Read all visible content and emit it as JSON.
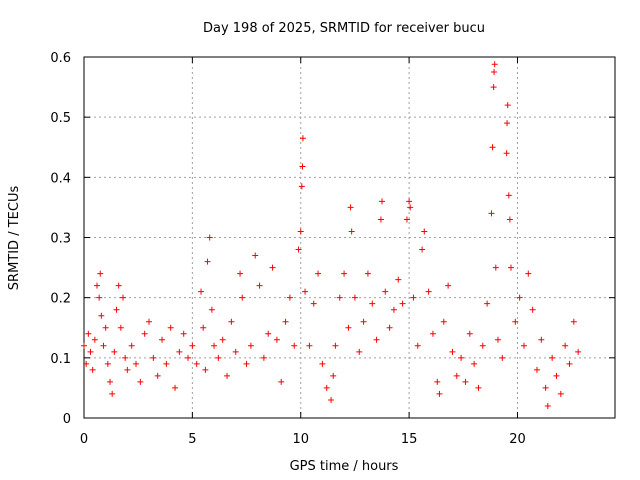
{
  "chart_data": {
    "type": "scatter",
    "title": "Day 198 of 2025, SRMTID for receiver bucu",
    "xlabel": "GPS time / hours",
    "ylabel": "SRMTID / TECUs",
    "xlim": [
      0,
      24.5
    ],
    "ylim": [
      0,
      0.6
    ],
    "xticks": [
      0,
      5,
      10,
      15,
      20
    ],
    "yticks": [
      0,
      0.1,
      0.2,
      0.3,
      0.4,
      0.5,
      0.6
    ],
    "xtick_labels": [
      "0",
      "5",
      "10",
      "15",
      "20"
    ],
    "ytick_labels": [
      "0",
      "0.1",
      "0.2",
      "0.3",
      "0.4",
      "0.5",
      "0.6"
    ],
    "grid": true,
    "marker": "+",
    "color": "#ff0000",
    "series": [
      {
        "name": "SRMTID",
        "points": [
          [
            0.0,
            0.12
          ],
          [
            0.1,
            0.09
          ],
          [
            0.2,
            0.14
          ],
          [
            0.3,
            0.11
          ],
          [
            0.4,
            0.08
          ],
          [
            0.5,
            0.13
          ],
          [
            0.6,
            0.22
          ],
          [
            0.7,
            0.2
          ],
          [
            0.75,
            0.24
          ],
          [
            0.8,
            0.17
          ],
          [
            0.9,
            0.12
          ],
          [
            1.0,
            0.15
          ],
          [
            1.1,
            0.09
          ],
          [
            1.2,
            0.06
          ],
          [
            1.3,
            0.04
          ],
          [
            1.4,
            0.11
          ],
          [
            1.5,
            0.18
          ],
          [
            1.6,
            0.22
          ],
          [
            1.7,
            0.15
          ],
          [
            1.8,
            0.2
          ],
          [
            1.9,
            0.1
          ],
          [
            2.0,
            0.08
          ],
          [
            2.2,
            0.12
          ],
          [
            2.4,
            0.09
          ],
          [
            2.6,
            0.06
          ],
          [
            2.8,
            0.14
          ],
          [
            3.0,
            0.16
          ],
          [
            3.2,
            0.1
          ],
          [
            3.4,
            0.07
          ],
          [
            3.6,
            0.13
          ],
          [
            3.8,
            0.09
          ],
          [
            4.0,
            0.15
          ],
          [
            4.2,
            0.05
          ],
          [
            4.4,
            0.11
          ],
          [
            4.6,
            0.14
          ],
          [
            4.8,
            0.1
          ],
          [
            5.0,
            0.12
          ],
          [
            5.2,
            0.09
          ],
          [
            5.4,
            0.21
          ],
          [
            5.5,
            0.15
          ],
          [
            5.6,
            0.08
          ],
          [
            5.7,
            0.26
          ],
          [
            5.8,
            0.3
          ],
          [
            5.9,
            0.18
          ],
          [
            6.0,
            0.12
          ],
          [
            6.2,
            0.1
          ],
          [
            6.4,
            0.13
          ],
          [
            6.6,
            0.07
          ],
          [
            6.8,
            0.16
          ],
          [
            7.0,
            0.11
          ],
          [
            7.2,
            0.24
          ],
          [
            7.3,
            0.2
          ],
          [
            7.5,
            0.09
          ],
          [
            7.7,
            0.12
          ],
          [
            7.9,
            0.27
          ],
          [
            8.1,
            0.22
          ],
          [
            8.3,
            0.1
          ],
          [
            8.5,
            0.14
          ],
          [
            8.7,
            0.25
          ],
          [
            8.9,
            0.13
          ],
          [
            9.1,
            0.06
          ],
          [
            9.3,
            0.16
          ],
          [
            9.5,
            0.2
          ],
          [
            9.7,
            0.12
          ],
          [
            9.9,
            0.28
          ],
          [
            10.0,
            0.31
          ],
          [
            10.05,
            0.385
          ],
          [
            10.08,
            0.418
          ],
          [
            10.1,
            0.465
          ],
          [
            10.2,
            0.21
          ],
          [
            10.4,
            0.12
          ],
          [
            10.6,
            0.19
          ],
          [
            10.8,
            0.24
          ],
          [
            11.0,
            0.09
          ],
          [
            11.2,
            0.05
          ],
          [
            11.4,
            0.03
          ],
          [
            11.5,
            0.07
          ],
          [
            11.6,
            0.12
          ],
          [
            11.8,
            0.2
          ],
          [
            12.0,
            0.24
          ],
          [
            12.2,
            0.15
          ],
          [
            12.3,
            0.35
          ],
          [
            12.35,
            0.31
          ],
          [
            12.5,
            0.2
          ],
          [
            12.7,
            0.11
          ],
          [
            12.9,
            0.16
          ],
          [
            13.1,
            0.24
          ],
          [
            13.3,
            0.19
          ],
          [
            13.5,
            0.13
          ],
          [
            13.7,
            0.33
          ],
          [
            13.75,
            0.36
          ],
          [
            13.9,
            0.21
          ],
          [
            14.1,
            0.15
          ],
          [
            14.3,
            0.18
          ],
          [
            14.5,
            0.23
          ],
          [
            14.7,
            0.19
          ],
          [
            14.9,
            0.33
          ],
          [
            15.0,
            0.36
          ],
          [
            15.05,
            0.35
          ],
          [
            15.2,
            0.2
          ],
          [
            15.4,
            0.12
          ],
          [
            15.6,
            0.28
          ],
          [
            15.7,
            0.31
          ],
          [
            15.9,
            0.21
          ],
          [
            16.1,
            0.14
          ],
          [
            16.3,
            0.06
          ],
          [
            16.4,
            0.04
          ],
          [
            16.6,
            0.16
          ],
          [
            16.8,
            0.22
          ],
          [
            17.0,
            0.11
          ],
          [
            17.2,
            0.07
          ],
          [
            17.4,
            0.1
          ],
          [
            17.6,
            0.06
          ],
          [
            17.8,
            0.14
          ],
          [
            18.0,
            0.09
          ],
          [
            18.2,
            0.05
          ],
          [
            18.4,
            0.12
          ],
          [
            18.6,
            0.19
          ],
          [
            18.8,
            0.34
          ],
          [
            18.85,
            0.45
          ],
          [
            18.9,
            0.55
          ],
          [
            18.92,
            0.575
          ],
          [
            18.95,
            0.588
          ],
          [
            19.0,
            0.25
          ],
          [
            19.1,
            0.13
          ],
          [
            19.3,
            0.1
          ],
          [
            19.5,
            0.44
          ],
          [
            19.52,
            0.49
          ],
          [
            19.55,
            0.52
          ],
          [
            19.6,
            0.37
          ],
          [
            19.65,
            0.33
          ],
          [
            19.7,
            0.25
          ],
          [
            19.9,
            0.16
          ],
          [
            20.1,
            0.2
          ],
          [
            20.3,
            0.12
          ],
          [
            20.5,
            0.24
          ],
          [
            20.7,
            0.18
          ],
          [
            20.9,
            0.08
          ],
          [
            21.1,
            0.13
          ],
          [
            21.3,
            0.05
          ],
          [
            21.4,
            0.02
          ],
          [
            21.6,
            0.1
          ],
          [
            21.8,
            0.07
          ],
          [
            22.0,
            0.04
          ],
          [
            22.2,
            0.12
          ],
          [
            22.4,
            0.09
          ],
          [
            22.6,
            0.16
          ],
          [
            22.8,
            0.11
          ]
        ]
      }
    ]
  }
}
